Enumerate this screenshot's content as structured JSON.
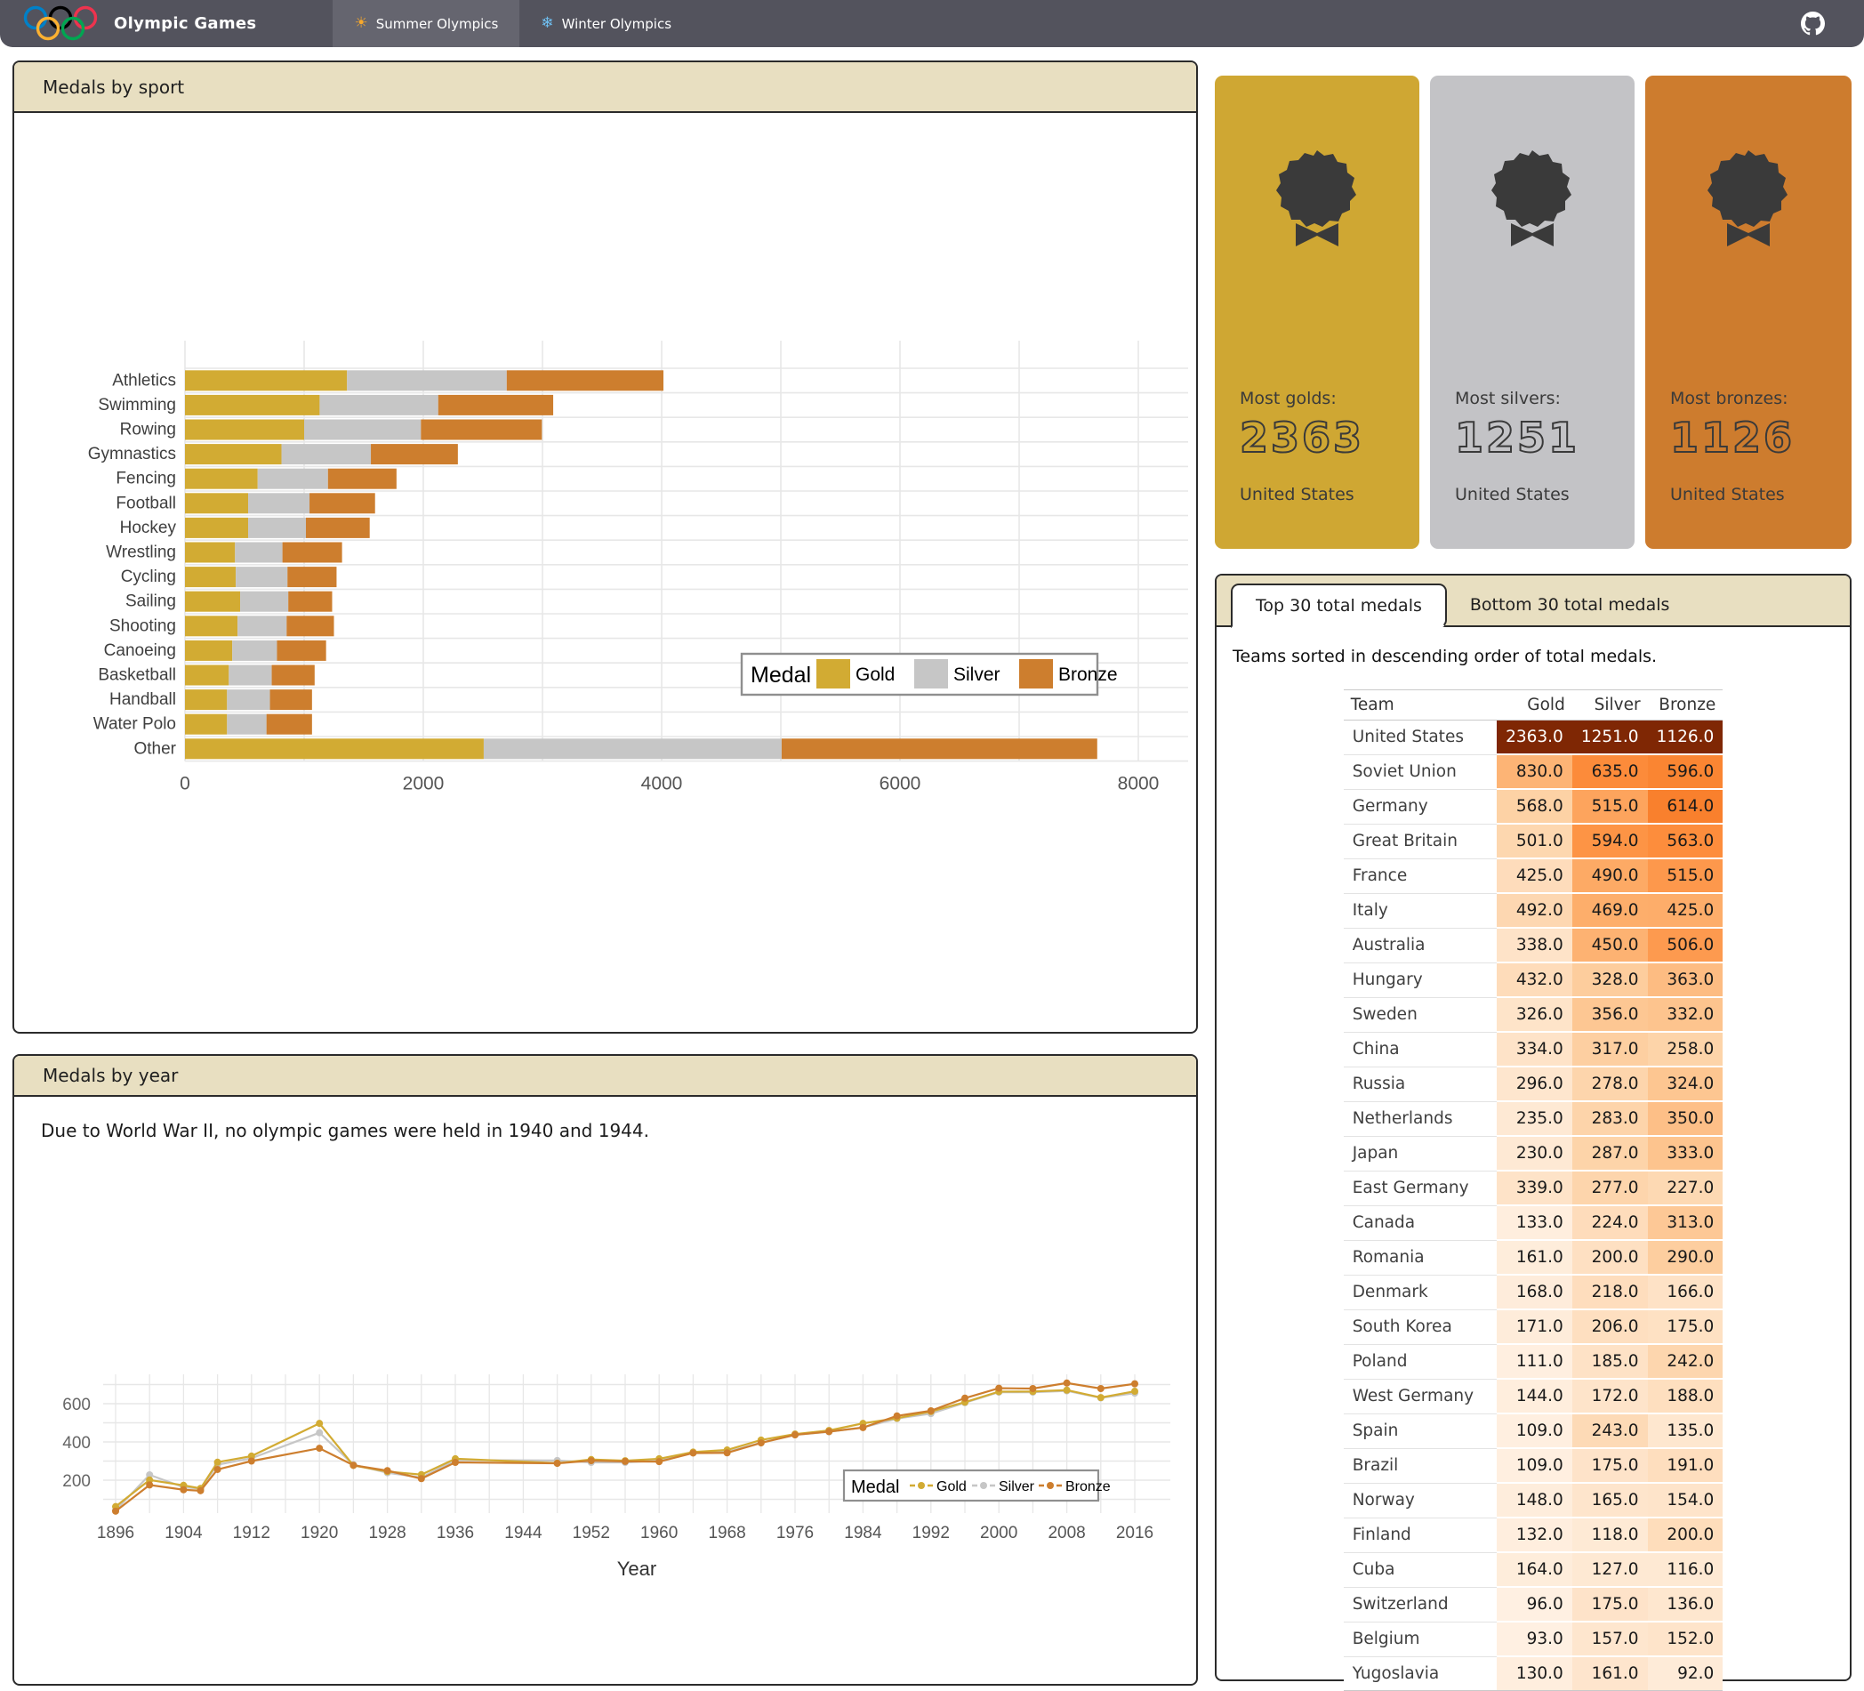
{
  "navbar": {
    "title": "Olympic Games",
    "tabs": [
      {
        "icon": "☀",
        "label": "Summer Olympics",
        "active": true
      },
      {
        "icon": "❄",
        "label": "Winter Olympics",
        "active": false
      }
    ],
    "github_icon": "github-icon"
  },
  "colors": {
    "navbar_bg": "#53535d",
    "navbar_active_tab": "#65656f",
    "panel_header_beige": "#e8dfc1",
    "panel_border": "#2b2b2b",
    "gold": "#d2ab33",
    "silver": "#c6c6c6",
    "bronze": "#cd7e2e",
    "grid": "#e7e7e7",
    "heat_max": "#7f2704",
    "olympic_rings": [
      "#0081C8",
      "#000000",
      "#EE334E",
      "#FCB131",
      "#00A651"
    ]
  },
  "cards": [
    {
      "label": "Most golds:",
      "value": "2363",
      "team": "United States",
      "bg": "#cfa733"
    },
    {
      "label": "Most silvers:",
      "value": "1251",
      "team": "United States",
      "bg": "#c3c3c6"
    },
    {
      "label": "Most bronzes:",
      "value": "1126",
      "team": "United States",
      "bg": "#cd7c2e"
    }
  ],
  "sport_panel": {
    "title": "Medals by sport",
    "chart_data": {
      "type": "bar",
      "orientation": "horizontal",
      "stacked": true,
      "legend_title": "Medal",
      "categories": [
        "Athletics",
        "Swimming",
        "Rowing",
        "Gymnastics",
        "Fencing",
        "Football",
        "Hockey",
        "Wrestling",
        "Cycling",
        "Sailing",
        "Shooting",
        "Canoeing",
        "Basketball",
        "Handball",
        "Water Polo",
        "Other"
      ],
      "series": [
        {
          "name": "Gold",
          "values": [
            1360,
            1130,
            1000,
            810,
            610,
            530,
            530,
            420,
            426,
            463,
            441,
            397,
            368,
            353,
            353,
            2507
          ]
        },
        {
          "name": "Silver",
          "values": [
            1340,
            995,
            980,
            750,
            590,
            515,
            485,
            398,
            434,
            404,
            412,
            375,
            360,
            360,
            331,
            2500
          ]
        },
        {
          "name": "Bronze",
          "values": [
            1315,
            965,
            1015,
            730,
            575,
            550,
            535,
            500,
            412,
            368,
            397,
            412,
            360,
            353,
            382,
            2648
          ]
        }
      ],
      "xlim": [
        0,
        8000
      ],
      "xticks": [
        0,
        2000,
        4000,
        6000,
        8000
      ]
    }
  },
  "year_panel": {
    "title": "Medals by year",
    "note": "Due to World War II, no olympic games were held in 1940 and 1944.",
    "chart_data": {
      "type": "line",
      "legend_title": "Medal",
      "xlabel": "Year",
      "x": [
        1896,
        1900,
        1904,
        1906,
        1908,
        1912,
        1920,
        1924,
        1928,
        1932,
        1936,
        1948,
        1952,
        1956,
        1960,
        1964,
        1968,
        1972,
        1976,
        1980,
        1984,
        1988,
        1992,
        1996,
        2000,
        2004,
        2008,
        2012,
        2016
      ],
      "series": [
        {
          "name": "Gold",
          "values": [
            62,
            201,
            173,
            157,
            294,
            326,
            497,
            277,
            245,
            229,
            312,
            289,
            308,
            302,
            312,
            347,
            358,
            410,
            441,
            460,
            497,
            524,
            559,
            608,
            663,
            664,
            671,
            632,
            665
          ]
        },
        {
          "name": "Silver",
          "values": [
            43,
            228,
            163,
            156,
            281,
            315,
            448,
            281,
            239,
            214,
            305,
            303,
            293,
            293,
            303,
            344,
            348,
            396,
            437,
            453,
            476,
            522,
            548,
            605,
            660,
            660,
            667,
            630,
            655
          ]
        },
        {
          "name": "Bronze",
          "values": [
            38,
            175,
            150,
            145,
            256,
            300,
            367,
            278,
            250,
            208,
            293,
            288,
            302,
            298,
            297,
            342,
            343,
            395,
            437,
            454,
            475,
            536,
            563,
            629,
            681,
            679,
            708,
            679,
            704
          ]
        }
      ],
      "yticks": [
        200,
        400,
        600
      ],
      "xticks": [
        1896,
        1904,
        1912,
        1920,
        1928,
        1936,
        1944,
        1952,
        1960,
        1968,
        1976,
        1984,
        1992,
        2000,
        2008,
        2016
      ]
    }
  },
  "table_panel": {
    "tabs": [
      "Top 30 total medals",
      "Bottom 30 total medals"
    ],
    "active_tab": 0,
    "description": "Teams sorted in descending order of total medals.",
    "columns": [
      "Team",
      "Gold",
      "Silver",
      "Bronze"
    ],
    "column_max": [
      2363,
      1251,
      1126
    ],
    "rows": [
      [
        "United States",
        2363,
        1251,
        1126
      ],
      [
        "Soviet Union",
        830,
        635,
        596
      ],
      [
        "Germany",
        568,
        515,
        614
      ],
      [
        "Great Britain",
        501,
        594,
        563
      ],
      [
        "France",
        425,
        490,
        515
      ],
      [
        "Italy",
        492,
        469,
        425
      ],
      [
        "Australia",
        338,
        450,
        506
      ],
      [
        "Hungary",
        432,
        328,
        363
      ],
      [
        "Sweden",
        326,
        356,
        332
      ],
      [
        "China",
        334,
        317,
        258
      ],
      [
        "Russia",
        296,
        278,
        324
      ],
      [
        "Netherlands",
        235,
        283,
        350
      ],
      [
        "Japan",
        230,
        287,
        333
      ],
      [
        "East Germany",
        339,
        277,
        227
      ],
      [
        "Canada",
        133,
        224,
        313
      ],
      [
        "Romania",
        161,
        200,
        290
      ],
      [
        "Denmark",
        168,
        218,
        166
      ],
      [
        "South Korea",
        171,
        206,
        175
      ],
      [
        "Poland",
        111,
        185,
        242
      ],
      [
        "West Germany",
        144,
        172,
        188
      ],
      [
        "Spain",
        109,
        243,
        135
      ],
      [
        "Brazil",
        109,
        175,
        191
      ],
      [
        "Norway",
        148,
        165,
        154
      ],
      [
        "Finland",
        132,
        118,
        200
      ],
      [
        "Cuba",
        164,
        127,
        116
      ],
      [
        "Switzerland",
        96,
        175,
        136
      ],
      [
        "Belgium",
        93,
        157,
        152
      ],
      [
        "Yugoslavia",
        130,
        161,
        92
      ]
    ]
  }
}
